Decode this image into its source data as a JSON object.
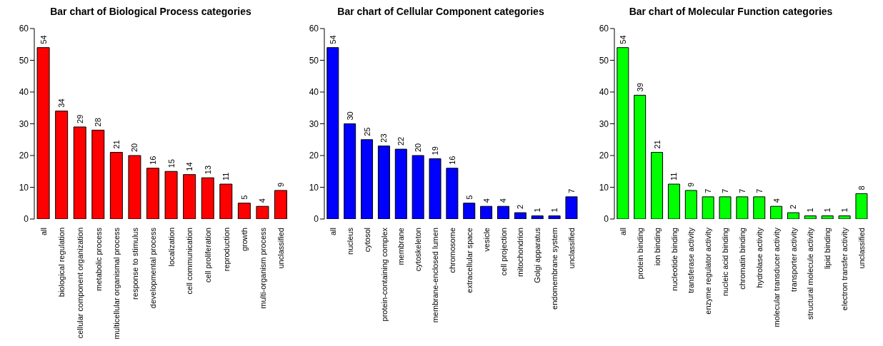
{
  "chart_data": [
    {
      "type": "bar",
      "title": "Bar chart of Biological Process categories",
      "categories": [
        "all",
        "biological regulation",
        "cellular component organization",
        "metabolic process",
        "multicellular organismal process",
        "response to stimulus",
        "developmental process",
        "localization",
        "cell communication",
        "cell proliferation",
        "reproduction",
        "growth",
        "multi-organism process",
        "unclassified"
      ],
      "values": [
        54,
        34,
        29,
        28,
        21,
        20,
        16,
        15,
        14,
        13,
        11,
        5,
        4,
        9
      ],
      "color": "#ff0000",
      "ylim": [
        0,
        60
      ],
      "yticks": [
        0,
        10,
        20,
        30,
        40,
        50,
        60
      ],
      "data_labels": true,
      "grid": false,
      "legend": false
    },
    {
      "type": "bar",
      "title": "Bar chart of Cellular Component categories",
      "categories": [
        "all",
        "nucleus",
        "cytosol",
        "protein-containing complex",
        "membrane",
        "cytoskeleton",
        "membrane-enclosed lumen",
        "chromosome",
        "extracellular space",
        "vesicle",
        "cell projection",
        "mitochondrion",
        "Golgi apparatus",
        "endomembrane system",
        "unclassified"
      ],
      "values": [
        54,
        30,
        25,
        23,
        22,
        20,
        19,
        16,
        5,
        4,
        4,
        2,
        1,
        1,
        7
      ],
      "color": "#0000ff",
      "ylim": [
        0,
        60
      ],
      "yticks": [
        0,
        10,
        20,
        30,
        40,
        50,
        60
      ],
      "data_labels": true,
      "grid": false,
      "legend": false
    },
    {
      "type": "bar",
      "title": "Bar chart of Molecular Function categories",
      "categories": [
        "all",
        "protein binding",
        "ion binding",
        "nucleotide binding",
        "transferase activity",
        "enzyme regulator activity",
        "nucleic acid binding",
        "chromatin binding",
        "hydrolase activity",
        "molecular transducer activity",
        "transporter activity",
        "structural molecule activity",
        "lipid binding",
        "electron transfer activity",
        "unclassified"
      ],
      "values": [
        54,
        39,
        21,
        11,
        9,
        7,
        7,
        7,
        7,
        4,
        2,
        1,
        1,
        1,
        8
      ],
      "color": "#00ff00",
      "ylim": [
        0,
        60
      ],
      "yticks": [
        0,
        10,
        20,
        30,
        40,
        50,
        60
      ],
      "data_labels": true,
      "grid": false,
      "legend": false
    }
  ]
}
